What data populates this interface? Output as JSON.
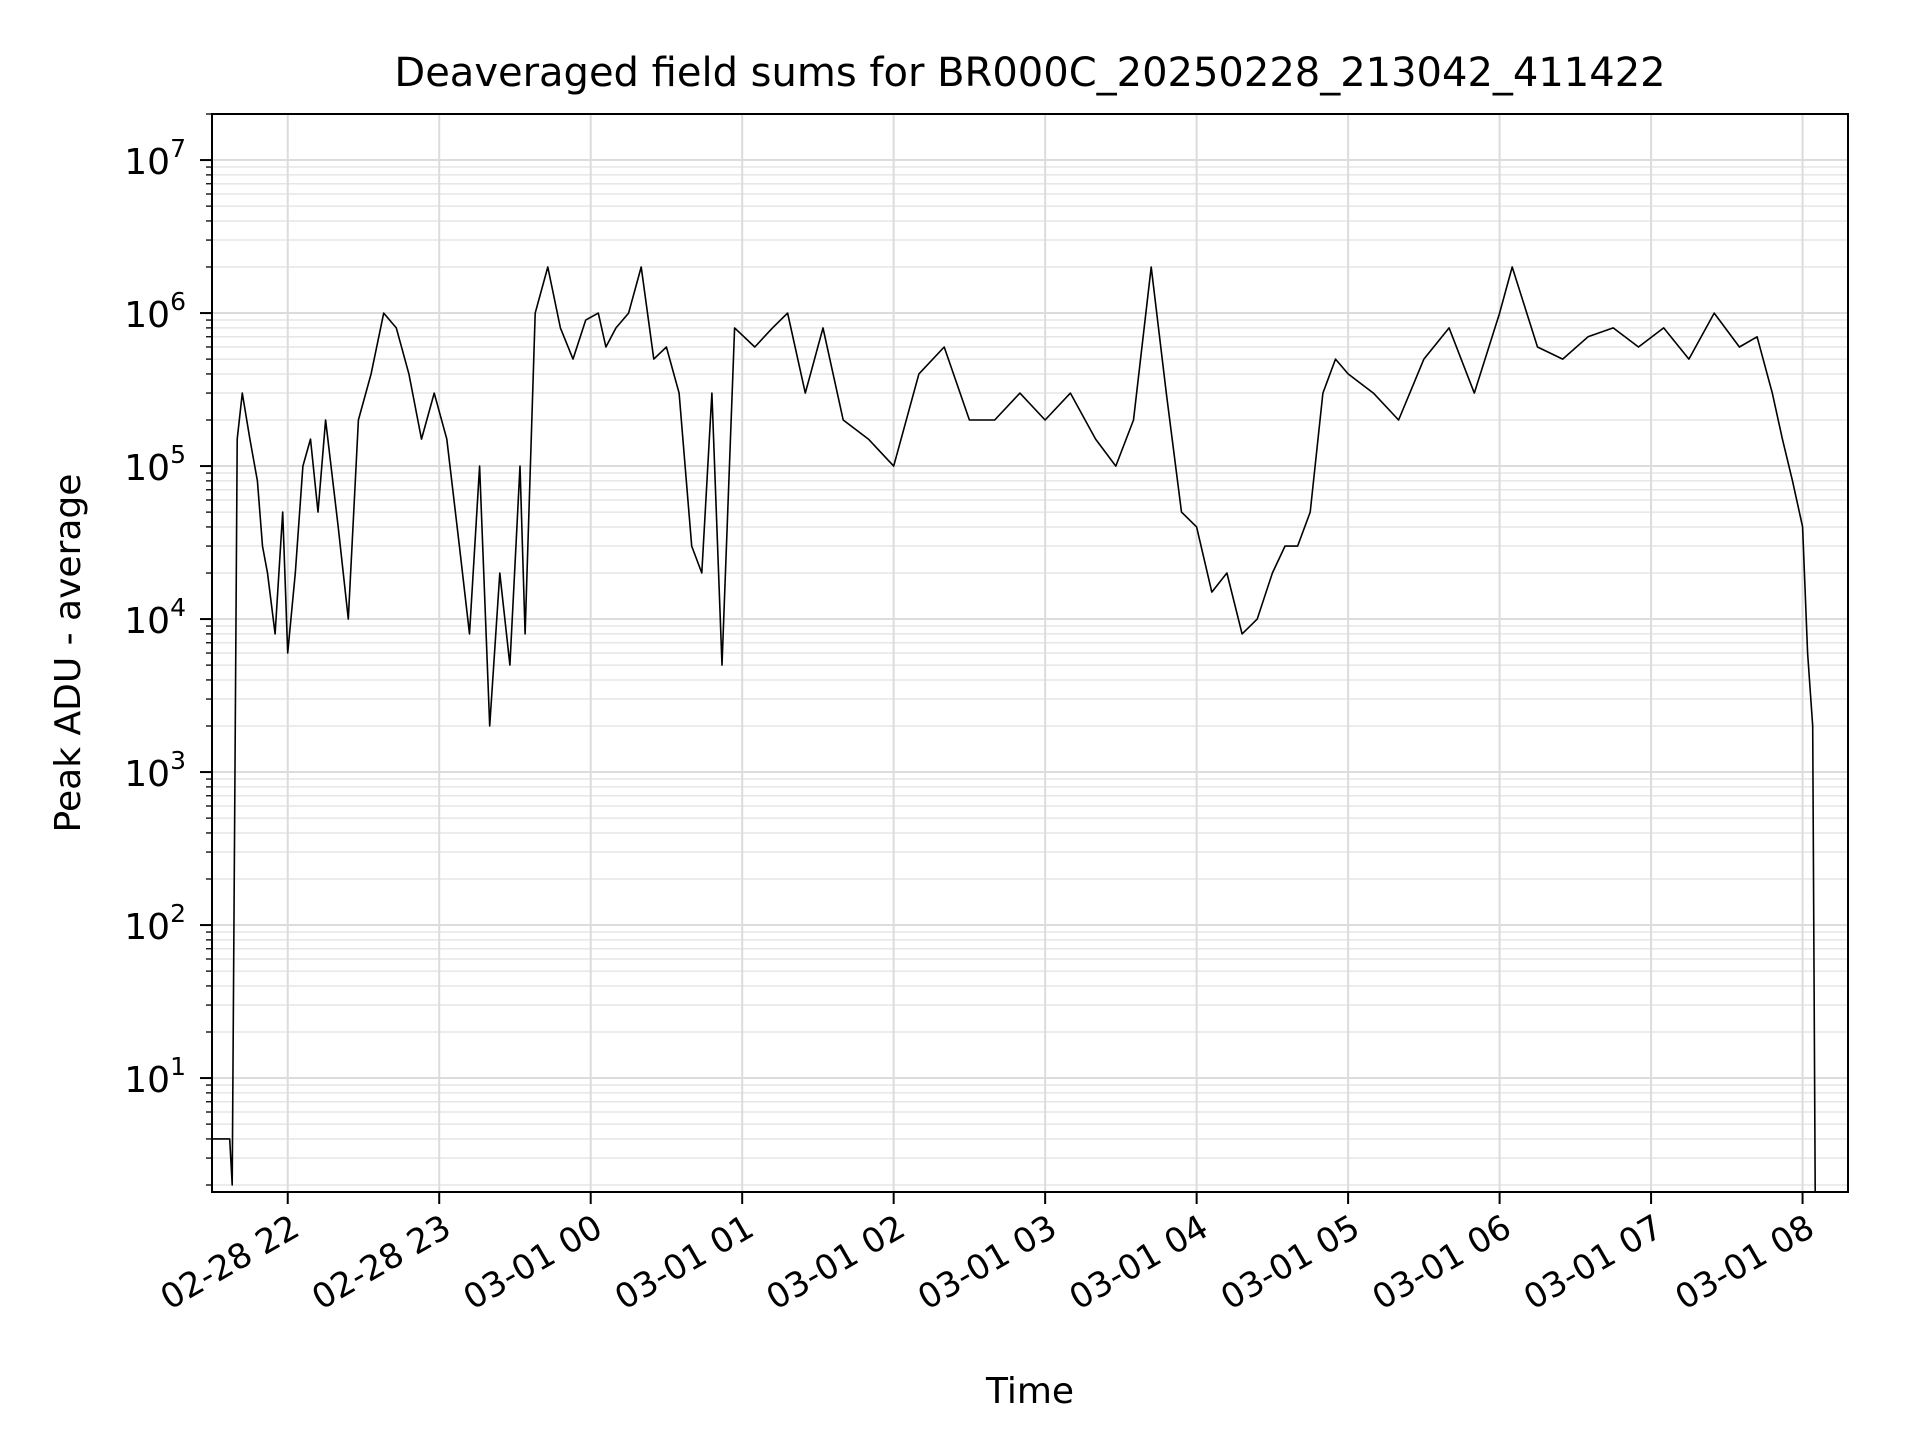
{
  "chart_data": {
    "type": "line",
    "title": "Deaveraged field sums for BR000C_20250228_213042_411422",
    "xlabel": "Time",
    "ylabel": "Peak ADU - average",
    "yscale": "log",
    "ylim": [
      1.8,
      20000000
    ],
    "xlim": [
      "2025-02-28 21:30",
      "2025-03-01 08:18"
    ],
    "grid": "major and minor",
    "line_color": "#000000",
    "x_ticks": [
      {
        "time": "2025-02-28 22:00",
        "label": "02-28 22"
      },
      {
        "time": "2025-02-28 23:00",
        "label": "02-28 23"
      },
      {
        "time": "2025-03-01 00:00",
        "label": "03-01 00"
      },
      {
        "time": "2025-03-01 01:00",
        "label": "03-01 01"
      },
      {
        "time": "2025-03-01 02:00",
        "label": "03-01 02"
      },
      {
        "time": "2025-03-01 03:00",
        "label": "03-01 03"
      },
      {
        "time": "2025-03-01 04:00",
        "label": "03-01 04"
      },
      {
        "time": "2025-03-01 05:00",
        "label": "03-01 05"
      },
      {
        "time": "2025-03-01 06:00",
        "label": "03-01 06"
      },
      {
        "time": "2025-03-01 07:00",
        "label": "03-01 07"
      },
      {
        "time": "2025-03-01 08:00",
        "label": "03-01 08"
      }
    ],
    "y_ticks": [
      {
        "value": 10,
        "base": "10",
        "exp": "1"
      },
      {
        "value": 100,
        "base": "10",
        "exp": "2"
      },
      {
        "value": 1000,
        "base": "10",
        "exp": "3"
      },
      {
        "value": 10000,
        "base": "10",
        "exp": "4"
      },
      {
        "value": 100000,
        "base": "10",
        "exp": "5"
      },
      {
        "value": 1000000,
        "base": "10",
        "exp": "6"
      },
      {
        "value": 10000000,
        "base": "10",
        "exp": "7"
      }
    ],
    "series": [
      {
        "x": [
          "2025-02-28 21:30",
          "2025-02-28 21:36",
          "2025-02-28 21:37",
          "2025-02-28 21:38",
          "2025-02-28 21:40",
          "2025-02-28 21:42",
          "2025-02-28 21:45",
          "2025-02-28 21:48",
          "2025-02-28 21:50",
          "2025-02-28 21:52",
          "2025-02-28 21:55",
          "2025-02-28 21:58",
          "2025-02-28 22:00",
          "2025-02-28 22:03",
          "2025-02-28 22:06",
          "2025-02-28 22:09",
          "2025-02-28 22:12",
          "2025-02-28 22:15",
          "2025-02-28 22:20",
          "2025-02-28 22:24",
          "2025-02-28 22:28",
          "2025-02-28 22:33",
          "2025-02-28 22:38",
          "2025-02-28 22:43",
          "2025-02-28 22:48",
          "2025-02-28 22:53",
          "2025-02-28 22:58",
          "2025-02-28 23:03",
          "2025-02-28 23:08",
          "2025-02-28 23:12",
          "2025-02-28 23:16",
          "2025-02-28 23:20",
          "2025-02-28 23:24",
          "2025-02-28 23:28",
          "2025-02-28 23:32",
          "2025-02-28 23:34",
          "2025-02-28 23:38",
          "2025-02-28 23:43",
          "2025-02-28 23:48",
          "2025-02-28 23:53",
          "2025-02-28 23:58",
          "2025-03-01 00:03",
          "2025-03-01 00:06",
          "2025-03-01 00:10",
          "2025-03-01 00:15",
          "2025-03-01 00:20",
          "2025-03-01 00:25",
          "2025-03-01 00:30",
          "2025-03-01 00:35",
          "2025-03-01 00:40",
          "2025-03-01 00:44",
          "2025-03-01 00:48",
          "2025-03-01 00:52",
          "2025-03-01 00:57",
          "2025-03-01 01:05",
          "2025-03-01 01:12",
          "2025-03-01 01:18",
          "2025-03-01 01:25",
          "2025-03-01 01:32",
          "2025-03-01 01:40",
          "2025-03-01 01:50",
          "2025-03-01 02:00",
          "2025-03-01 02:10",
          "2025-03-01 02:20",
          "2025-03-01 02:30",
          "2025-03-01 02:40",
          "2025-03-01 02:50",
          "2025-03-01 03:00",
          "2025-03-01 03:10",
          "2025-03-01 03:20",
          "2025-03-01 03:28",
          "2025-03-01 03:35",
          "2025-03-01 03:42",
          "2025-03-01 03:48",
          "2025-03-01 03:54",
          "2025-03-01 04:00",
          "2025-03-01 04:06",
          "2025-03-01 04:12",
          "2025-03-01 04:18",
          "2025-03-01 04:24",
          "2025-03-01 04:30",
          "2025-03-01 04:35",
          "2025-03-01 04:40",
          "2025-03-01 04:45",
          "2025-03-01 04:50",
          "2025-03-01 04:55",
          "2025-03-01 05:00",
          "2025-03-01 05:10",
          "2025-03-01 05:20",
          "2025-03-01 05:30",
          "2025-03-01 05:40",
          "2025-03-01 05:50",
          "2025-03-01 06:00",
          "2025-03-01 06:05",
          "2025-03-01 06:15",
          "2025-03-01 06:25",
          "2025-03-01 06:35",
          "2025-03-01 06:45",
          "2025-03-01 06:55",
          "2025-03-01 07:05",
          "2025-03-01 07:15",
          "2025-03-01 07:25",
          "2025-03-01 07:35",
          "2025-03-01 07:42",
          "2025-03-01 07:48",
          "2025-03-01 07:52",
          "2025-03-01 07:56",
          "2025-03-01 08:00",
          "2025-03-01 08:02",
          "2025-03-01 08:04",
          "2025-03-01 08:05"
        ],
        "y": [
          4,
          4,
          4,
          2,
          150000,
          300000,
          150000,
          80000,
          30000,
          20000,
          8000,
          50000,
          6000,
          20000,
          100000,
          150000,
          50000,
          200000,
          40000,
          10000,
          200000,
          400000,
          1000000,
          800000,
          400000,
          150000,
          300000,
          150000,
          30000,
          8000,
          100000,
          2000,
          20000,
          5000,
          100000,
          8000,
          1000000,
          2000000,
          800000,
          500000,
          900000,
          1000000,
          600000,
          800000,
          1000000,
          2000000,
          500000,
          600000,
          300000,
          30000,
          20000,
          300000,
          5000,
          800000,
          600000,
          800000,
          1000000,
          300000,
          800000,
          200000,
          150000,
          100000,
          400000,
          600000,
          200000,
          200000,
          300000,
          200000,
          300000,
          150000,
          100000,
          200000,
          2000000,
          300000,
          50000,
          40000,
          15000,
          20000,
          8000,
          10000,
          20000,
          30000,
          30000,
          50000,
          300000,
          500000,
          400000,
          300000,
          200000,
          500000,
          800000,
          300000,
          1000000,
          2000000,
          600000,
          500000,
          700000,
          800000,
          600000,
          800000,
          500000,
          1000000,
          600000,
          700000,
          300000,
          150000,
          80000,
          40000,
          6000,
          2000,
          1.5
        ]
      }
    ]
  }
}
